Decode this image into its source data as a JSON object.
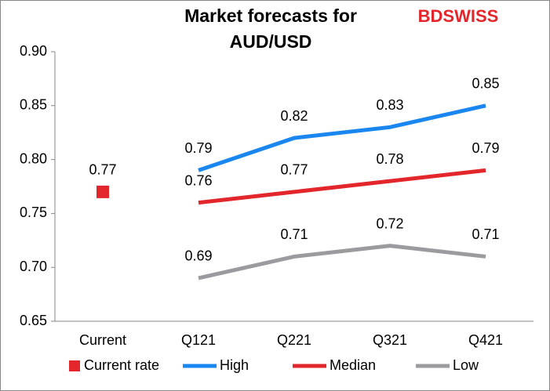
{
  "chart_data": {
    "type": "line",
    "title": [
      "Market forecasts for",
      "AUD/USD"
    ],
    "logo": "BDSWISS",
    "categories": [
      "Current",
      "Q121",
      "Q221",
      "Q321",
      "Q421"
    ],
    "series": [
      {
        "name": "Current rate",
        "type": "scatter",
        "color": "#e3262b",
        "values": [
          0.77,
          null,
          null,
          null,
          null
        ]
      },
      {
        "name": "High",
        "type": "line",
        "color": "#1a86f0",
        "values": [
          null,
          0.79,
          0.82,
          0.83,
          0.85
        ]
      },
      {
        "name": "Median",
        "type": "line",
        "color": "#e3262b",
        "values": [
          null,
          0.76,
          0.77,
          0.78,
          0.79
        ]
      },
      {
        "name": "Low",
        "type": "line",
        "color": "#9b9b9f",
        "values": [
          null,
          0.69,
          0.71,
          0.72,
          0.71
        ]
      }
    ],
    "ylim": [
      0.65,
      0.9
    ],
    "yticks": [
      0.65,
      {
        "value": 0.7,
        "label": "0.70"
      },
      0.75,
      {
        "value": 0.8,
        "label": "0.80"
      },
      0.85,
      {
        "value": 0.9,
        "label": "0.90"
      }
    ],
    "grid": false,
    "legend": "bottom"
  }
}
